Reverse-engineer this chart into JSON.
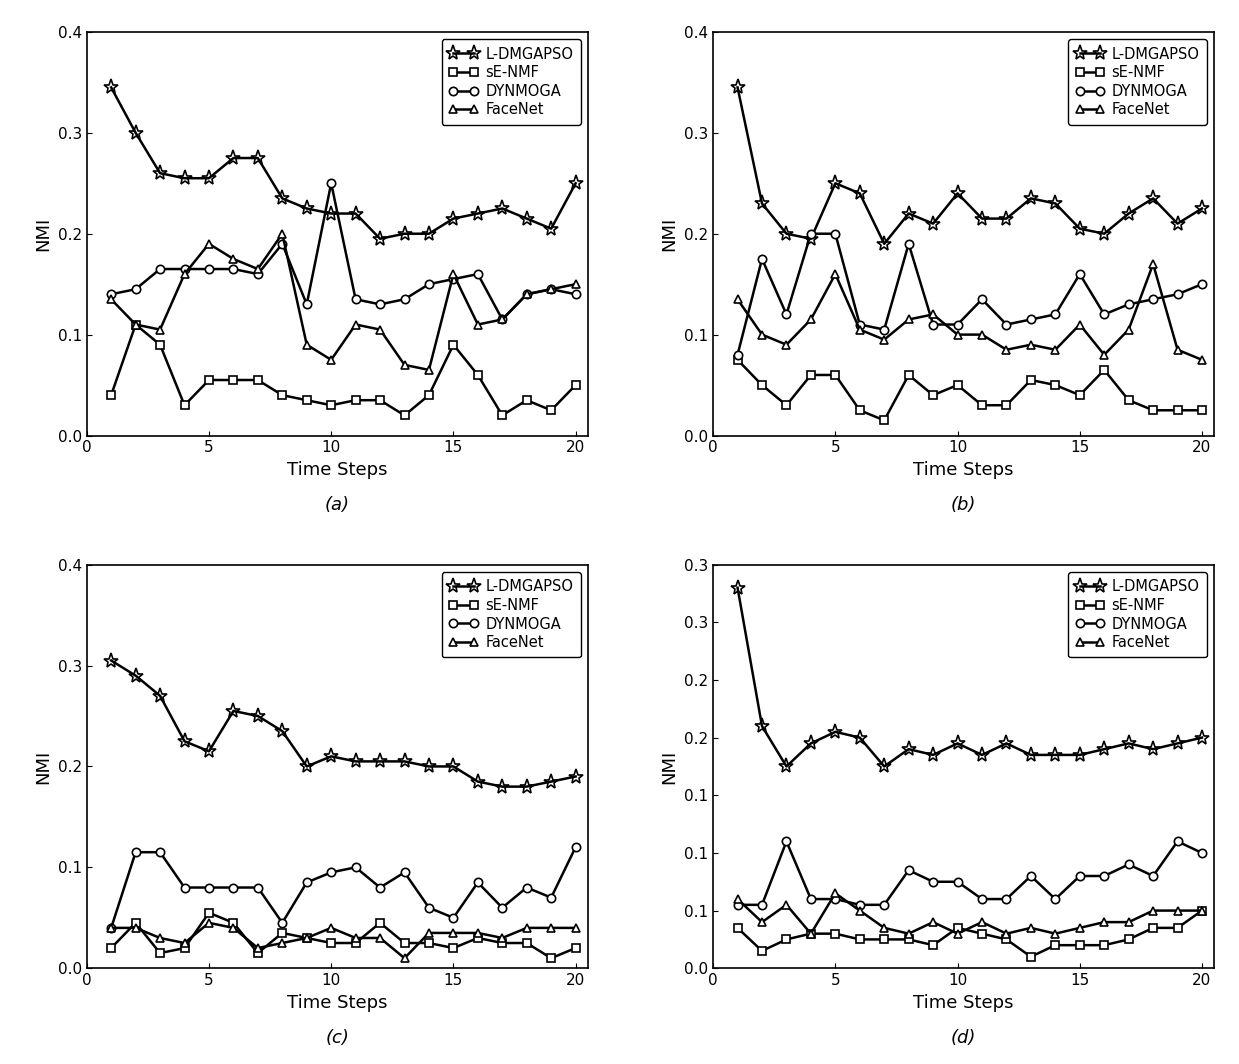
{
  "x": [
    1,
    2,
    3,
    4,
    5,
    6,
    7,
    8,
    9,
    10,
    11,
    12,
    13,
    14,
    15,
    16,
    17,
    18,
    19,
    20
  ],
  "subplot_a": {
    "L_DMGAPSO": [
      0.345,
      0.3,
      0.26,
      0.255,
      0.255,
      0.275,
      0.275,
      0.235,
      0.225,
      0.22,
      0.22,
      0.195,
      0.2,
      0.2,
      0.215,
      0.22,
      0.225,
      0.215,
      0.205,
      0.25
    ],
    "sE_NMF": [
      0.04,
      0.11,
      0.09,
      0.03,
      0.055,
      0.055,
      0.055,
      0.04,
      0.035,
      0.03,
      0.035,
      0.035,
      0.02,
      0.04,
      0.09,
      0.06,
      0.02,
      0.035,
      0.025,
      0.05
    ],
    "DYNMOGA": [
      0.14,
      0.145,
      0.165,
      0.165,
      0.165,
      0.165,
      0.16,
      0.19,
      0.13,
      0.25,
      0.135,
      0.13,
      0.135,
      0.15,
      0.155,
      0.16,
      0.115,
      0.14,
      0.145,
      0.14
    ],
    "FaceNet": [
      0.135,
      0.11,
      0.105,
      0.16,
      0.19,
      0.175,
      0.165,
      0.2,
      0.09,
      0.075,
      0.11,
      0.105,
      0.07,
      0.065,
      0.16,
      0.11,
      0.115,
      0.14,
      0.145,
      0.15
    ],
    "ylim": [
      0.0,
      0.4
    ],
    "yticks": [
      0.0,
      0.1,
      0.2,
      0.3,
      0.4
    ],
    "label": "(a)"
  },
  "subplot_b": {
    "L_DMGAPSO": [
      0.345,
      0.23,
      0.2,
      0.195,
      0.25,
      0.24,
      0.19,
      0.22,
      0.21,
      0.24,
      0.215,
      0.215,
      0.235,
      0.23,
      0.205,
      0.2,
      0.22,
      0.235,
      0.21,
      0.225
    ],
    "sE_NMF": [
      0.075,
      0.05,
      0.03,
      0.06,
      0.06,
      0.025,
      0.015,
      0.06,
      0.04,
      0.05,
      0.03,
      0.03,
      0.055,
      0.05,
      0.04,
      0.065,
      0.035,
      0.025,
      0.025,
      0.025
    ],
    "DYNMOGA": [
      0.08,
      0.175,
      0.12,
      0.2,
      0.2,
      0.11,
      0.105,
      0.19,
      0.11,
      0.11,
      0.135,
      0.11,
      0.115,
      0.12,
      0.16,
      0.12,
      0.13,
      0.135,
      0.14,
      0.15
    ],
    "FaceNet": [
      0.135,
      0.1,
      0.09,
      0.115,
      0.16,
      0.105,
      0.095,
      0.115,
      0.12,
      0.1,
      0.1,
      0.085,
      0.09,
      0.085,
      0.11,
      0.08,
      0.105,
      0.17,
      0.085,
      0.075
    ],
    "ylim": [
      0.0,
      0.4
    ],
    "yticks": [
      0.0,
      0.1,
      0.2,
      0.3,
      0.4
    ],
    "label": "(b)"
  },
  "subplot_c": {
    "L_DMGAPSO": [
      0.305,
      0.29,
      0.27,
      0.225,
      0.215,
      0.255,
      0.25,
      0.235,
      0.2,
      0.21,
      0.205,
      0.205,
      0.205,
      0.2,
      0.2,
      0.185,
      0.18,
      0.18,
      0.185,
      0.19
    ],
    "sE_NMF": [
      0.02,
      0.045,
      0.015,
      0.02,
      0.055,
      0.045,
      0.015,
      0.035,
      0.03,
      0.025,
      0.025,
      0.045,
      0.025,
      0.025,
      0.02,
      0.03,
      0.025,
      0.025,
      0.01,
      0.02
    ],
    "DYNMOGA": [
      0.04,
      0.115,
      0.115,
      0.08,
      0.08,
      0.08,
      0.08,
      0.045,
      0.085,
      0.095,
      0.1,
      0.08,
      0.095,
      0.06,
      0.05,
      0.085,
      0.06,
      0.08,
      0.07,
      0.12
    ],
    "FaceNet": [
      0.04,
      0.04,
      0.03,
      0.025,
      0.045,
      0.04,
      0.02,
      0.025,
      0.03,
      0.04,
      0.03,
      0.03,
      0.01,
      0.035,
      0.035,
      0.035,
      0.03,
      0.04,
      0.04,
      0.04
    ],
    "ylim": [
      0.0,
      0.4
    ],
    "yticks": [
      0.0,
      0.1,
      0.2,
      0.3,
      0.4
    ],
    "label": "(c)"
  },
  "subplot_d": {
    "L_DMGAPSO": [
      0.33,
      0.21,
      0.175,
      0.195,
      0.205,
      0.2,
      0.175,
      0.19,
      0.185,
      0.195,
      0.185,
      0.195,
      0.185,
      0.185,
      0.185,
      0.19,
      0.195,
      0.19,
      0.195,
      0.2
    ],
    "sE_NMF": [
      0.035,
      0.015,
      0.025,
      0.03,
      0.03,
      0.025,
      0.025,
      0.025,
      0.02,
      0.035,
      0.03,
      0.025,
      0.01,
      0.02,
      0.02,
      0.02,
      0.025,
      0.035,
      0.035,
      0.05
    ],
    "DYNMOGA": [
      0.055,
      0.055,
      0.11,
      0.06,
      0.06,
      0.055,
      0.055,
      0.085,
      0.075,
      0.075,
      0.06,
      0.06,
      0.08,
      0.06,
      0.08,
      0.08,
      0.09,
      0.08,
      0.11,
      0.1
    ],
    "FaceNet": [
      0.06,
      0.04,
      0.055,
      0.03,
      0.065,
      0.05,
      0.035,
      0.03,
      0.04,
      0.03,
      0.04,
      0.03,
      0.035,
      0.03,
      0.035,
      0.04,
      0.04,
      0.05,
      0.05,
      0.05
    ],
    "ylim": [
      0.0,
      0.35
    ],
    "yticks": [
      0.0,
      0.05,
      0.1,
      0.15,
      0.2,
      0.25,
      0.3,
      0.35
    ],
    "label": "(d)"
  },
  "series_styles": {
    "L_DMGAPSO": {
      "marker": "*",
      "markersize": 11,
      "linewidth": 1.8,
      "mfc": "none"
    },
    "sE_NMF": {
      "marker": "s",
      "markersize": 6,
      "linewidth": 1.8,
      "mfc": "white"
    },
    "DYNMOGA": {
      "marker": "o",
      "markersize": 6,
      "linewidth": 1.8,
      "mfc": "white"
    },
    "FaceNet": {
      "marker": "^",
      "markersize": 6,
      "linewidth": 1.8,
      "mfc": "white"
    }
  },
  "legend_labels": [
    "L-DMGAPSO",
    "sE-NMF",
    "DYNMOGA",
    "FaceNet"
  ],
  "series_keys": [
    "L_DMGAPSO",
    "sE_NMF",
    "DYNMOGA",
    "FaceNet"
  ],
  "xlabel": "Time Steps",
  "ylabel": "NMI",
  "color": "black",
  "bg_color": "white",
  "xticks": [
    0,
    5,
    10,
    15,
    20
  ],
  "figure_size": [
    12.39,
    10.64
  ],
  "dpi": 100
}
